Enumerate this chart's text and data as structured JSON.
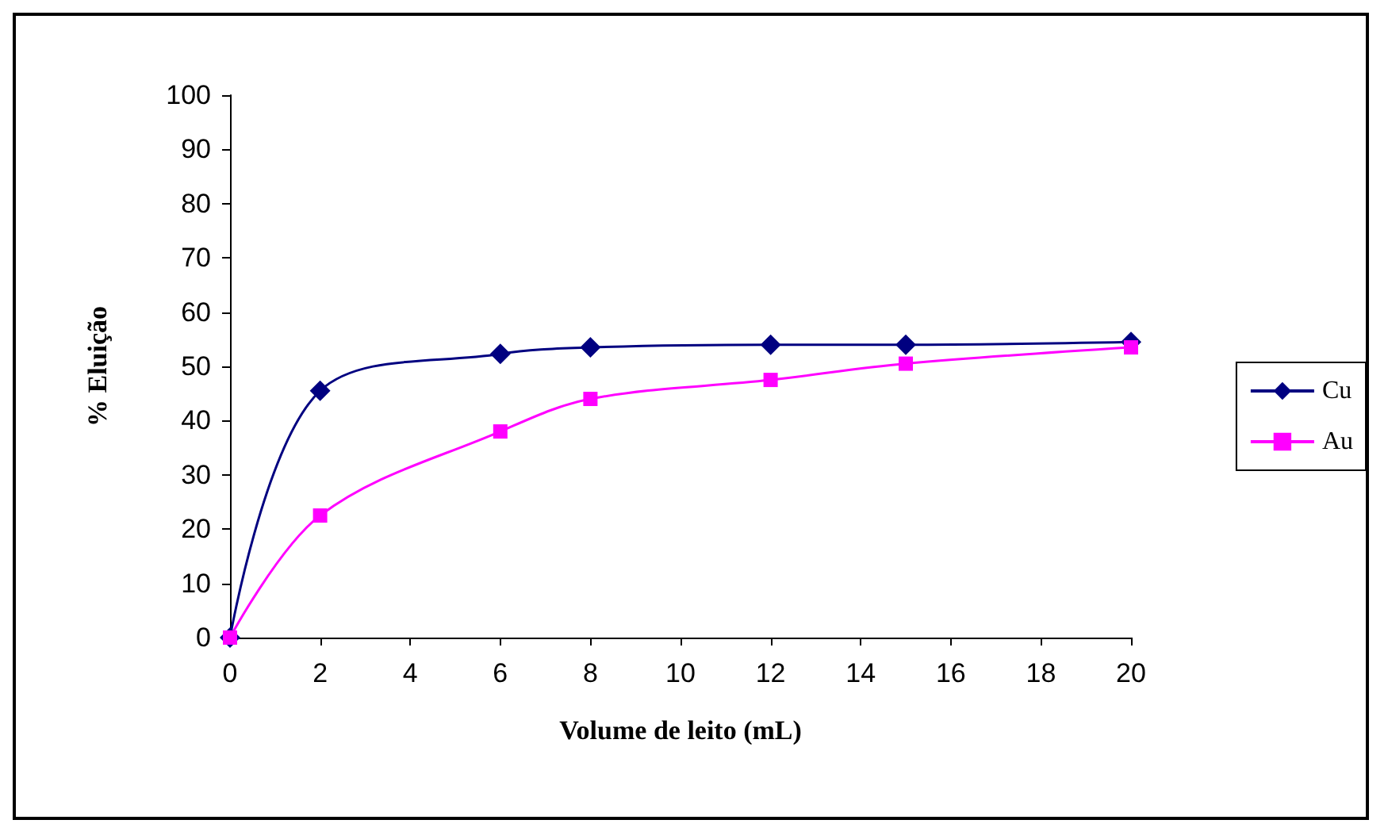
{
  "chart_data": {
    "type": "line",
    "xlabel": "Volume de leito (mL)",
    "ylabel": "% Eluição",
    "series": [
      {
        "name": "Cu",
        "color": "#000080",
        "marker": "diamond",
        "x": [
          0,
          2,
          6,
          8,
          12,
          15,
          20
        ],
        "values": [
          0,
          45.5,
          52.3,
          53.5,
          54,
          54,
          54.5
        ]
      },
      {
        "name": "Au",
        "color": "#ff00ff",
        "marker": "square",
        "x": [
          0,
          2,
          6,
          8,
          12,
          15,
          20
        ],
        "values": [
          0,
          22.5,
          38,
          44,
          47.5,
          50.5,
          53.5
        ]
      }
    ],
    "xlim": [
      0,
      20
    ],
    "xticks": [
      0,
      2,
      4,
      6,
      8,
      10,
      12,
      14,
      16,
      18,
      20
    ],
    "ylim": [
      0,
      100
    ],
    "yticks": [
      0,
      10,
      20,
      30,
      40,
      50,
      60,
      70,
      80,
      90,
      100
    ],
    "grid": false,
    "legend": "right"
  }
}
